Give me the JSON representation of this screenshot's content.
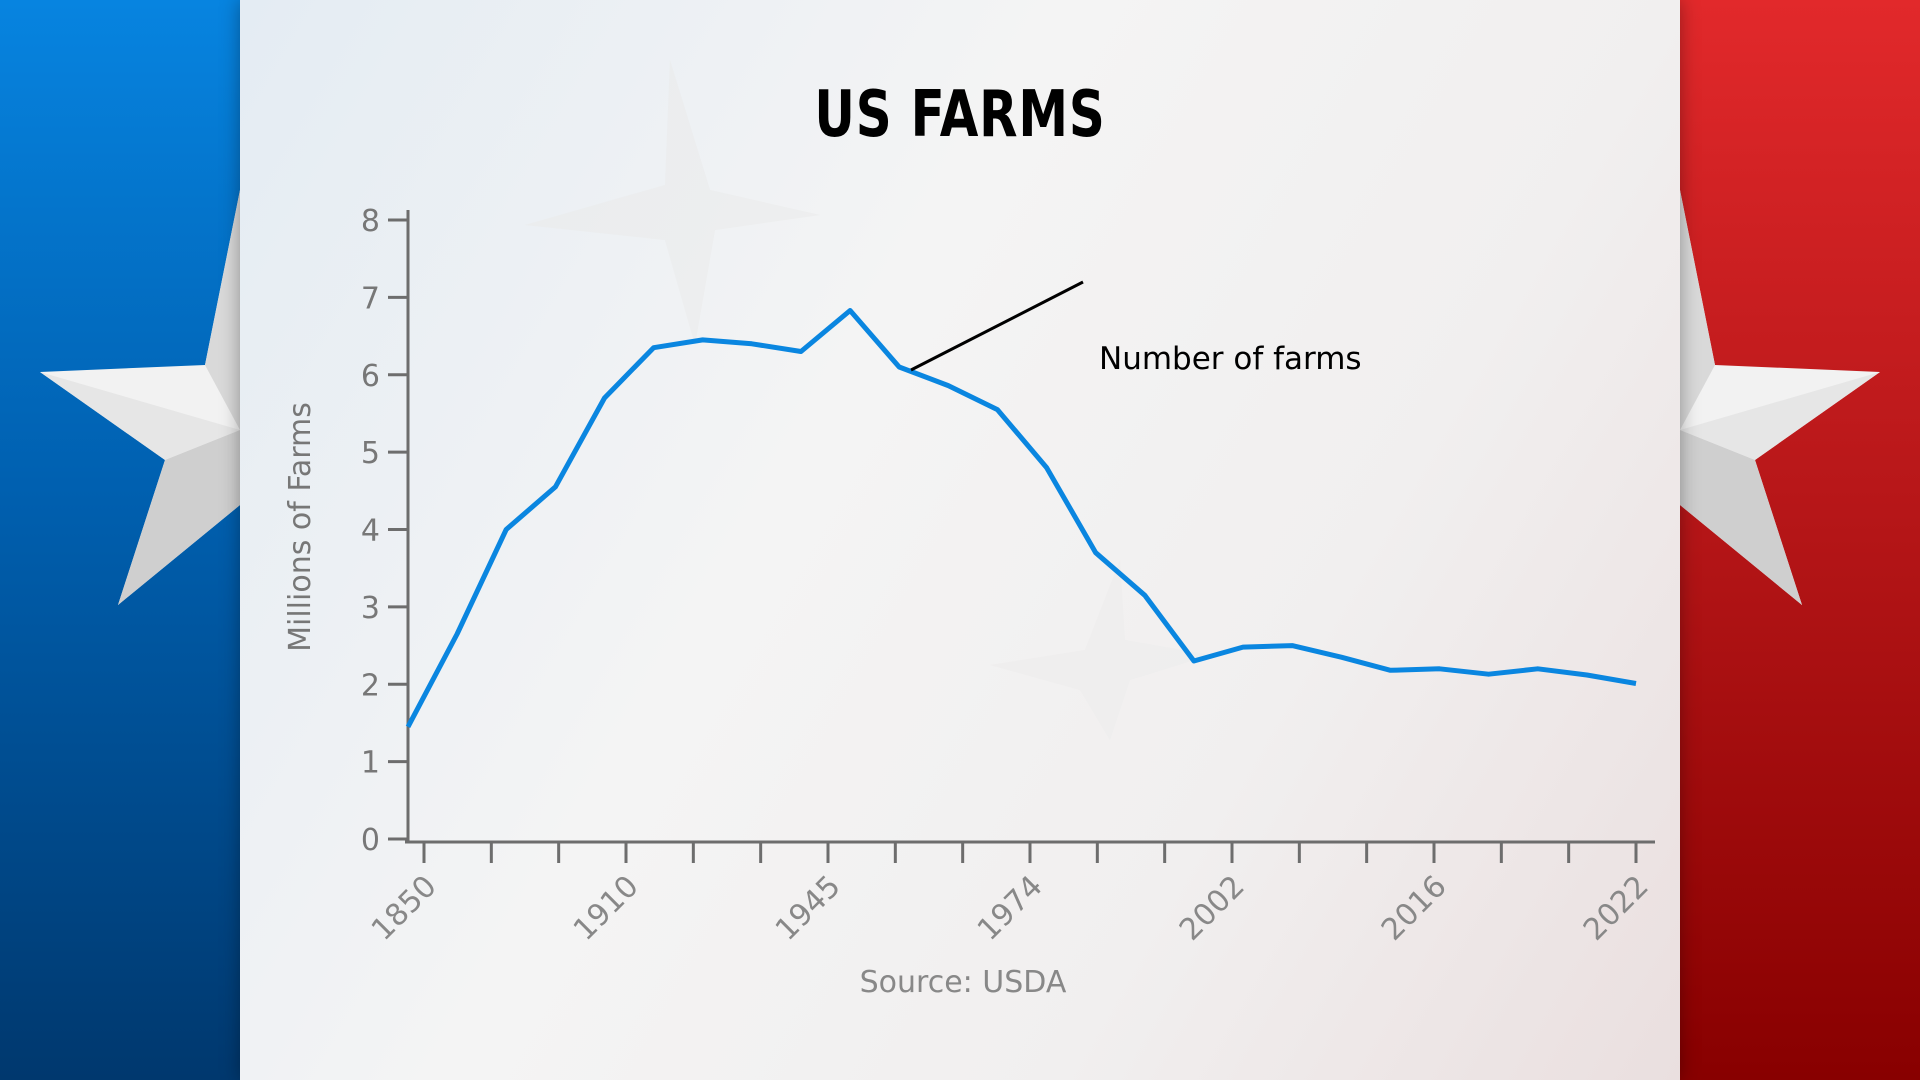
{
  "colors": {
    "line": "#0a86e0",
    "axis": "#6d6d6d",
    "left_band": "#0060b0",
    "right_band": "#b81719"
  },
  "chart_data": {
    "type": "line",
    "title": "US FARMS",
    "ylabel": "Millions of Farms",
    "ylim": [
      0,
      8
    ],
    "yticks": [
      "0",
      "1",
      "2",
      "3",
      "4",
      "5",
      "6",
      "7",
      "8"
    ],
    "xtick_labels": [
      "1850",
      "1910",
      "1945",
      "1974",
      "2002",
      "2016",
      "2022"
    ],
    "series": [
      {
        "name": "Number of farms",
        "values": [
          1.45,
          2.65,
          4.0,
          4.55,
          5.7,
          6.35,
          6.45,
          6.4,
          6.3,
          6.83,
          6.1,
          5.86,
          5.55,
          4.8,
          3.7,
          3.15,
          2.3,
          2.48,
          2.5,
          2.35,
          2.18,
          2.2,
          2.13,
          2.2,
          2.12,
          2.01
        ]
      }
    ],
    "source": "Source: USDA"
  }
}
